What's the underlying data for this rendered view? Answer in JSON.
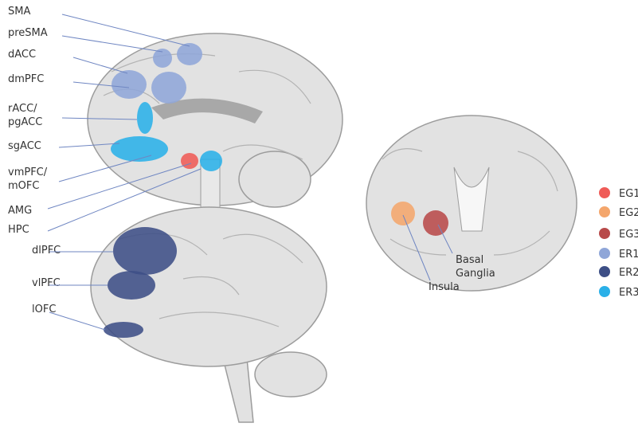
{
  "labels": [
    {
      "lines": [
        "SMA"
      ]
    },
    {
      "lines": [
        "preSMA"
      ]
    },
    {
      "lines": [
        "dACC"
      ]
    },
    {
      "lines": [
        "dmPFC"
      ]
    },
    {
      "lines": [
        "rACC/",
        "pgACC"
      ]
    },
    {
      "lines": [
        "sgACC"
      ]
    },
    {
      "lines": [
        "vmPFC/",
        "mOFC"
      ]
    },
    {
      "lines": [
        "AMG"
      ]
    },
    {
      "lines": [
        "HPC"
      ]
    },
    {
      "lines": [
        "dlPFC"
      ]
    },
    {
      "lines": [
        "vlPFC"
      ]
    },
    {
      "lines": [
        "lOFC"
      ]
    },
    {
      "lines": [
        "Basal",
        "Ganglia"
      ]
    },
    {
      "lines": [
        "Insula"
      ]
    }
  ],
  "legend": [
    {
      "name": "EG1",
      "color": "#ef5b57"
    },
    {
      "name": "EG2",
      "color": "#f4a66c"
    },
    {
      "name": "EG3",
      "color": "#b84a4a"
    },
    {
      "name": "ER1",
      "color": "#8fa6d8"
    },
    {
      "name": "ER2",
      "color": "#3d4f86"
    },
    {
      "name": "ER3",
      "color": "#2ab0e8"
    }
  ]
}
